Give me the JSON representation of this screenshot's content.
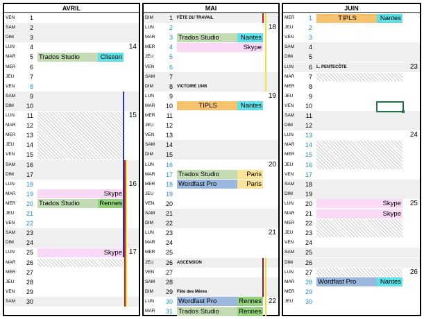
{
  "months": [
    {
      "title": "AVRIL",
      "days": [
        {
          "d": "VEN",
          "n": "1"
        },
        {
          "d": "SAM",
          "n": "2",
          "we": true
        },
        {
          "d": "DIM",
          "n": "3",
          "we": true
        },
        {
          "d": "LUN",
          "n": "4",
          "wk": "14"
        },
        {
          "d": "MAR",
          "n": "5"
        },
        {
          "d": "MER",
          "n": "6"
        },
        {
          "d": "JEU",
          "n": "7"
        },
        {
          "d": "VEN",
          "n": "8",
          "blue": true
        },
        {
          "d": "SAM",
          "n": "9",
          "we": true
        },
        {
          "d": "DIM",
          "n": "10",
          "we": true
        },
        {
          "d": "LUN",
          "n": "11",
          "wk": "15"
        },
        {
          "d": "MAR",
          "n": "12"
        },
        {
          "d": "MER",
          "n": "13"
        },
        {
          "d": "JEU",
          "n": "14"
        },
        {
          "d": "VEN",
          "n": "15"
        },
        {
          "d": "SAM",
          "n": "16",
          "we": true
        },
        {
          "d": "DIM",
          "n": "17",
          "we": true
        },
        {
          "d": "LUN",
          "n": "18",
          "blue": true,
          "wk": "16"
        },
        {
          "d": "MAR",
          "n": "19",
          "blue": true
        },
        {
          "d": "MER",
          "n": "20",
          "blue": true
        },
        {
          "d": "JEU",
          "n": "21",
          "blue": true
        },
        {
          "d": "VEN",
          "n": "22",
          "blue": true
        },
        {
          "d": "SAM",
          "n": "23",
          "we": true
        },
        {
          "d": "DIM",
          "n": "24",
          "we": true
        },
        {
          "d": "LUN",
          "n": "25",
          "wk": "17"
        },
        {
          "d": "MAR",
          "n": "26"
        },
        {
          "d": "MER",
          "n": "27"
        },
        {
          "d": "JEU",
          "n": "28"
        },
        {
          "d": "VEN",
          "n": "29"
        },
        {
          "d": "SAM",
          "n": "30",
          "we": true
        }
      ]
    },
    {
      "title": "MAI",
      "days": [
        {
          "d": "DIM",
          "n": "1",
          "we": true,
          "hol": "FÊTE DU TRAVAIL"
        },
        {
          "d": "LUN",
          "n": "2",
          "blue": true,
          "wk": "18"
        },
        {
          "d": "MAR",
          "n": "3",
          "blue": true
        },
        {
          "d": "MER",
          "n": "4",
          "blue": true
        },
        {
          "d": "JEU",
          "n": "5",
          "blue": true
        },
        {
          "d": "VEN",
          "n": "6",
          "blue": true
        },
        {
          "d": "SAM",
          "n": "7",
          "we": true
        },
        {
          "d": "DIM",
          "n": "8",
          "we": true,
          "hol": "VICTOIRE 1945"
        },
        {
          "d": "LUN",
          "n": "9",
          "wk": "19"
        },
        {
          "d": "MAR",
          "n": "10"
        },
        {
          "d": "MER",
          "n": "11"
        },
        {
          "d": "JEU",
          "n": "12"
        },
        {
          "d": "VEN",
          "n": "13"
        },
        {
          "d": "SAM",
          "n": "14",
          "we": true
        },
        {
          "d": "DIM",
          "n": "15",
          "we": true
        },
        {
          "d": "LUN",
          "n": "16",
          "blue": true,
          "wk": "20"
        },
        {
          "d": "MAR",
          "n": "17",
          "blue": true
        },
        {
          "d": "MER",
          "n": "18",
          "blue": true
        },
        {
          "d": "JEU",
          "n": "19",
          "blue": true
        },
        {
          "d": "VEN",
          "n": "20"
        },
        {
          "d": "SAM",
          "n": "21",
          "we": true
        },
        {
          "d": "DIM",
          "n": "22",
          "we": true
        },
        {
          "d": "LUN",
          "n": "23",
          "wk": "21"
        },
        {
          "d": "MAR",
          "n": "24"
        },
        {
          "d": "MER",
          "n": "25"
        },
        {
          "d": "JEU",
          "n": "26",
          "we": true,
          "hol": "ASCENSION"
        },
        {
          "d": "VEN",
          "n": "27"
        },
        {
          "d": "SAM",
          "n": "28",
          "we": true
        },
        {
          "d": "DIM",
          "n": "29",
          "we": true,
          "hol": "Fête des Mères"
        },
        {
          "d": "LUN",
          "n": "30",
          "blue": true,
          "wk": "22"
        },
        {
          "d": "MAR",
          "n": "31",
          "blue": true
        }
      ]
    },
    {
      "title": "JUIN",
      "days": [
        {
          "d": "MER",
          "n": "1",
          "blue": true
        },
        {
          "d": "JEU",
          "n": "2",
          "blue": true
        },
        {
          "d": "VEN",
          "n": "3",
          "blue": true
        },
        {
          "d": "SAM",
          "n": "4",
          "we": true
        },
        {
          "d": "DIM",
          "n": "5",
          "we": true
        },
        {
          "d": "LUN",
          "n": "6",
          "we": true,
          "hol": "L. PENTECÔTE",
          "wk": "23"
        },
        {
          "d": "MAR",
          "n": "7"
        },
        {
          "d": "MER",
          "n": "8"
        },
        {
          "d": "JEU",
          "n": "9"
        },
        {
          "d": "VEN",
          "n": "10"
        },
        {
          "d": "SAM",
          "n": "11",
          "we": true
        },
        {
          "d": "DIM",
          "n": "12",
          "we": true
        },
        {
          "d": "LUN",
          "n": "13",
          "blue": true,
          "wk": "24"
        },
        {
          "d": "MAR",
          "n": "14",
          "blue": true
        },
        {
          "d": "MER",
          "n": "15",
          "blue": true
        },
        {
          "d": "JEU",
          "n": "16",
          "blue": true
        },
        {
          "d": "VEN",
          "n": "17",
          "blue": true
        },
        {
          "d": "SAM",
          "n": "18",
          "we": true
        },
        {
          "d": "DIM",
          "n": "19",
          "we": true
        },
        {
          "d": "LUN",
          "n": "20",
          "wk": "25"
        },
        {
          "d": "MAR",
          "n": "21"
        },
        {
          "d": "MER",
          "n": "22"
        },
        {
          "d": "JEU",
          "n": "23"
        },
        {
          "d": "VEN",
          "n": "24"
        },
        {
          "d": "SAM",
          "n": "25",
          "we": true
        },
        {
          "d": "DIM",
          "n": "26",
          "we": true
        },
        {
          "d": "LUN",
          "n": "27",
          "wk": "26"
        },
        {
          "d": "MAR",
          "n": "28",
          "blue": true
        },
        {
          "d": "MER",
          "n": "29",
          "blue": true
        },
        {
          "d": "JEU",
          "n": "30",
          "blue": true
        }
      ]
    }
  ],
  "events": [
    {
      "m": 0,
      "r": 4,
      "label": "Trados Studio",
      "place": "Clisson",
      "c": "#c3dcb3",
      "pc": "#5fe0e8"
    },
    {
      "m": 0,
      "r": 18,
      "label": "",
      "place": "Skype",
      "c": "#f9d9f6",
      "pc": "#f9d9f6"
    },
    {
      "m": 0,
      "r": 19,
      "label": "Trados Studio",
      "place": "Rennes",
      "c": "#c3dcb3",
      "pc": "#91d27a"
    },
    {
      "m": 0,
      "r": 24,
      "label": "",
      "place": "Skype",
      "c": "#f9d9f6",
      "pc": "#f9d9f6"
    },
    {
      "m": 1,
      "r": 2,
      "label": "Trados Studio",
      "place": "Nantes",
      "c": "#c3dcb3",
      "pc": "#5fe0e8"
    },
    {
      "m": 1,
      "r": 3,
      "label": "",
      "place": "Skype",
      "c": "#f9d9f6",
      "pc": "#f9d9f6"
    },
    {
      "m": 1,
      "r": 9,
      "label": "TIPLS",
      "place": "Nantes",
      "c": "#f7c26d",
      "pc": "#5fe0e8",
      "center": true
    },
    {
      "m": 1,
      "r": 16,
      "label": "Trados Studio",
      "place": "Paris",
      "c": "#c3dcb3",
      "pc": "#fbe49a"
    },
    {
      "m": 1,
      "r": 17,
      "label": "Wordfast Pro",
      "place": "Paris",
      "c": "#9ab8de",
      "pc": "#fbe49a"
    },
    {
      "m": 1,
      "r": 29,
      "label": "Wordfast Pro",
      "place": "Rennes",
      "c": "#9ab8de",
      "pc": "#91d27a"
    },
    {
      "m": 1,
      "r": 30,
      "label": "Trados Studio",
      "place": "Rennes",
      "c": "#c3dcb3",
      "pc": "#91d27a"
    },
    {
      "m": 2,
      "r": 0,
      "label": "TIPLS",
      "place": "Nantes",
      "c": "#f7c26d",
      "pc": "#5fe0e8",
      "center": true
    },
    {
      "m": 2,
      "r": 19,
      "label": "",
      "place": "Skype",
      "c": "#f9d9f6",
      "pc": "#f9d9f6"
    },
    {
      "m": 2,
      "r": 20,
      "label": "",
      "place": "Skype",
      "c": "#f9d9f6",
      "pc": "#f9d9f6"
    },
    {
      "m": 2,
      "r": 27,
      "label": "Wordfast Pro",
      "place": "Nantes",
      "c": "#9ab8de",
      "pc": "#5fe0e8"
    }
  ],
  "hatches": [
    {
      "m": 0,
      "r0": 10,
      "r1": 14
    },
    {
      "m": 0,
      "r0": 25,
      "r1": 25
    },
    {
      "m": 2,
      "r0": 6,
      "r1": 6
    },
    {
      "m": 2,
      "r0": 13,
      "r1": 15
    },
    {
      "m": 2,
      "r0": 21,
      "r1": 22
    },
    {
      "m": 2,
      "r0": 26,
      "r1": 26
    }
  ],
  "bars": [
    {
      "m": 0,
      "r0": 8,
      "r1": 24,
      "color": "#2233cc",
      "off": 0
    },
    {
      "m": 0,
      "r0": 15,
      "r1": 29,
      "color": "#cc1a1a",
      "off": 2
    },
    {
      "m": 0,
      "r0": 15,
      "r1": 29,
      "color": "#f2e03a",
      "off": 4
    },
    {
      "m": 1,
      "r0": 0,
      "r1": 0,
      "color": "#cc1a1a",
      "off": 0
    },
    {
      "m": 1,
      "r0": 0,
      "r1": 7,
      "color": "#f2e03a",
      "off": 4
    },
    {
      "m": 1,
      "r0": 25,
      "r1": 28,
      "color": "#8a1a40",
      "off": 0
    },
    {
      "m": 1,
      "r0": 25,
      "r1": 30,
      "color": "#f2e03a",
      "off": 4
    }
  ],
  "selection": {
    "m": 2,
    "r": 9
  }
}
